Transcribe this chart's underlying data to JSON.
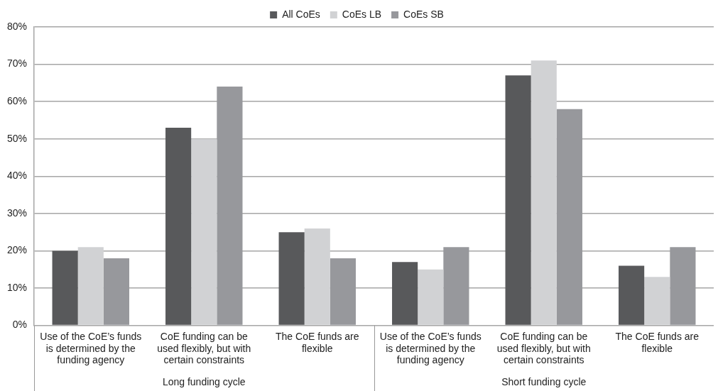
{
  "chart_data": {
    "type": "bar",
    "categories": [
      "Use of the CoE’s funds is determined by the funding agency",
      "CoE funding can be used flexibly, but with certain constraints",
      "The CoE funds are flexible",
      "Use of the CoE’s funds is determined by the funding agency",
      "CoE funding can be used flexibly, but with certain constraints",
      "The CoE funds are flexible"
    ],
    "series": [
      {
        "name": "All CoEs",
        "color": "#58595b",
        "values": [
          20,
          53,
          25,
          17,
          67,
          16
        ]
      },
      {
        "name": "CoEs LB",
        "color": "#d1d2d4",
        "values": [
          21,
          50,
          26,
          15,
          71,
          13
        ]
      },
      {
        "name": "CoEs SB",
        "color": "#97989c",
        "values": [
          18,
          64,
          18,
          21,
          58,
          21
        ]
      }
    ],
    "ylim": [
      0,
      80
    ],
    "yticks": [
      {
        "value": 0,
        "label": "0%"
      },
      {
        "value": 10,
        "label": "10%"
      },
      {
        "value": 20,
        "label": "20%"
      },
      {
        "value": 30,
        "label": "30%"
      },
      {
        "value": 40,
        "label": "40%"
      },
      {
        "value": 50,
        "label": "50%"
      },
      {
        "value": 60,
        "label": "60%"
      },
      {
        "value": 70,
        "label": "70%"
      },
      {
        "value": 80,
        "label": "80%"
      }
    ],
    "grid": "y",
    "legend": "top",
    "annotations": [
      "Long funding cycle",
      "Short funding cycle"
    ]
  }
}
